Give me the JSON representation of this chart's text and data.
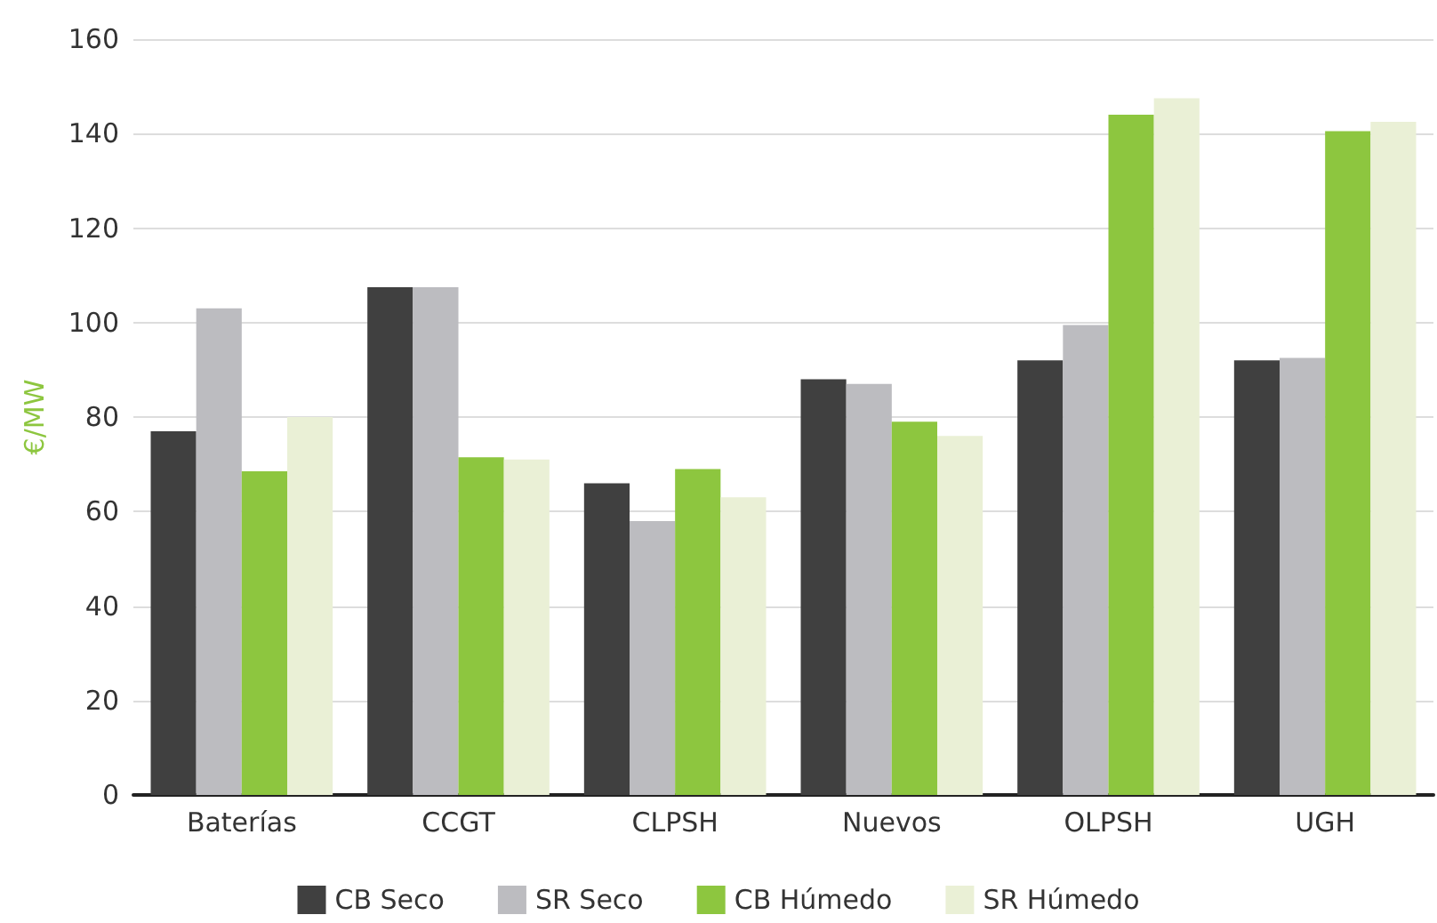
{
  "chart_data": {
    "type": "bar",
    "ylabel": "€/MW",
    "categories": [
      "Baterías",
      "CCGT",
      "CLPSH",
      "Nuevos",
      "OLPSH",
      "UGH"
    ],
    "series": [
      {
        "name": "CB Seco",
        "color": "#404040",
        "values": [
          77,
          107.5,
          66,
          88,
          92,
          92
        ]
      },
      {
        "name": "SR Seco",
        "color": "#bcbcc0",
        "values": [
          103,
          107.5,
          58,
          87,
          99.5,
          92.5
        ]
      },
      {
        "name": "CB Húmedo",
        "color": "#8dc63f",
        "values": [
          68.5,
          71.5,
          69,
          79,
          144,
          140.5
        ]
      },
      {
        "name": "SR Húmedo",
        "color": "#eaf0d6",
        "values": [
          80,
          71,
          63,
          76,
          147.5,
          142.5
        ]
      }
    ],
    "ylim": [
      0,
      160
    ],
    "yticks": [
      0,
      20,
      40,
      60,
      80,
      100,
      120,
      140,
      160
    ],
    "grid": "y",
    "legend": "bottom"
  }
}
